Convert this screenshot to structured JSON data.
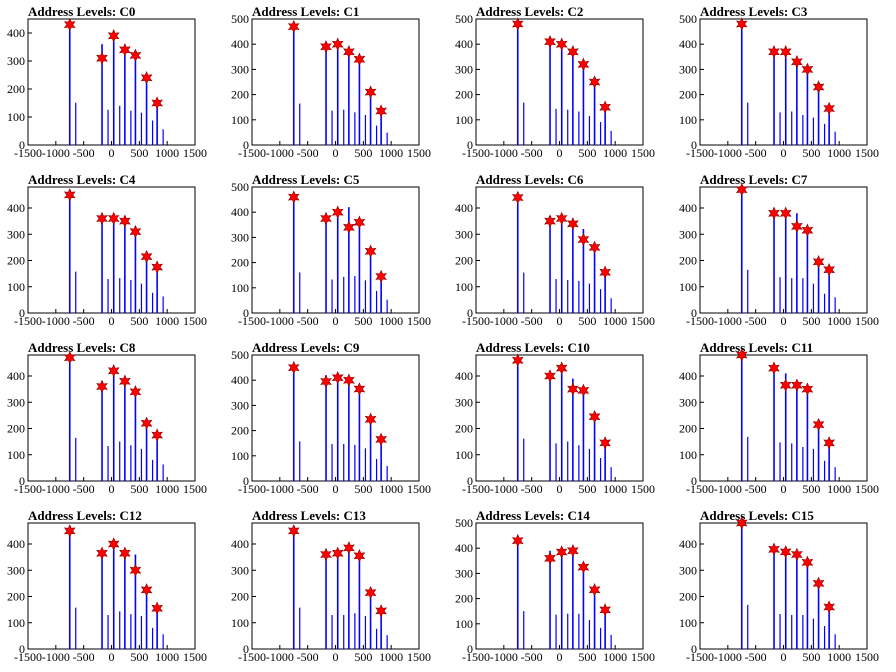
{
  "figure": {
    "rows": 4,
    "cols": 4
  },
  "chart_data": [
    {
      "title": "Address Levels: C0",
      "type": "bar",
      "xlim": [
        -1500,
        1500
      ],
      "ylim": [
        0,
        450
      ],
      "xticks": [
        "-1500",
        "-1000",
        "-500",
        "0",
        "500",
        "1000",
        "1500"
      ],
      "yticks": [
        "0",
        "100",
        "200",
        "300",
        "400"
      ],
      "peaks_x": [
        -750,
        -170,
        40,
        240,
        430,
        630,
        820
      ],
      "bar_heights": [
        430,
        360,
        400,
        350,
        330,
        250,
        160
      ],
      "marker_heights": [
        430,
        310,
        390,
        340,
        320,
        240,
        150
      ]
    },
    {
      "title": "Address Levels: C1",
      "type": "bar",
      "xlim": [
        -1500,
        1500
      ],
      "ylim": [
        0,
        500
      ],
      "xticks": [
        "-1500",
        "-1000",
        "-500",
        "0",
        "500",
        "1000",
        "1500"
      ],
      "yticks": [
        "0",
        "100",
        "200",
        "300",
        "400",
        "500"
      ],
      "peaks_x": [
        -750,
        -170,
        40,
        240,
        430,
        630,
        820
      ],
      "bar_heights": [
        470,
        390,
        400,
        370,
        340,
        220,
        140
      ],
      "marker_heights": [
        470,
        390,
        400,
        370,
        340,
        210,
        135
      ]
    },
    {
      "title": "Address Levels: C2",
      "type": "bar",
      "xlim": [
        -1500,
        1500
      ],
      "ylim": [
        0,
        500
      ],
      "xticks": [
        "-1500",
        "-1000",
        "-500",
        "0",
        "500",
        "1000",
        "1500"
      ],
      "yticks": [
        "0",
        "100",
        "200",
        "300",
        "400",
        "500"
      ],
      "peaks_x": [
        -750,
        -170,
        40,
        240,
        430,
        630,
        820
      ],
      "bar_heights": [
        480,
        410,
        400,
        380,
        330,
        260,
        160
      ],
      "marker_heights": [
        480,
        410,
        400,
        370,
        320,
        250,
        150
      ]
    },
    {
      "title": "Address Levels: C3",
      "type": "bar",
      "xlim": [
        -1500,
        1500
      ],
      "ylim": [
        0,
        500
      ],
      "xticks": [
        "-1500",
        "-1000",
        "-500",
        "0",
        "500",
        "1000",
        "1500"
      ],
      "yticks": [
        "0",
        "100",
        "200",
        "300",
        "400",
        "500"
      ],
      "peaks_x": [
        -750,
        -170,
        40,
        240,
        430,
        630,
        820
      ],
      "bar_heights": [
        480,
        370,
        380,
        340,
        310,
        240,
        150
      ],
      "marker_heights": [
        480,
        370,
        370,
        330,
        300,
        230,
        145
      ]
    },
    {
      "title": "Address Levels: C4",
      "type": "bar",
      "xlim": [
        -1500,
        1500
      ],
      "ylim": [
        0,
        480
      ],
      "xticks": [
        "-1500",
        "-1000",
        "-500",
        "0",
        "500",
        "1000",
        "1500"
      ],
      "yticks": [
        "0",
        "100",
        "200",
        "300",
        "400"
      ],
      "peaks_x": [
        -750,
        -170,
        40,
        240,
        430,
        630,
        820
      ],
      "bar_heights": [
        450,
        370,
        380,
        360,
        320,
        220,
        180
      ],
      "marker_heights": [
        450,
        360,
        360,
        350,
        310,
        215,
        175
      ]
    },
    {
      "title": "Address Levels: C5",
      "type": "bar",
      "xlim": [
        -1500,
        1500
      ],
      "ylim": [
        0,
        500
      ],
      "xticks": [
        "-1500",
        "-1000",
        "-500",
        "0",
        "500",
        "1000",
        "1500"
      ],
      "yticks": [
        "0",
        "100",
        "200",
        "300",
        "400",
        "500"
      ],
      "peaks_x": [
        -750,
        -170,
        40,
        240,
        430,
        630,
        820
      ],
      "bar_heights": [
        460,
        380,
        410,
        420,
        370,
        250,
        150
      ],
      "marker_heights": [
        460,
        375,
        400,
        340,
        360,
        245,
        145
      ]
    },
    {
      "title": "Address Levels: C6",
      "type": "bar",
      "xlim": [
        -1500,
        1500
      ],
      "ylim": [
        0,
        480
      ],
      "xticks": [
        "-1500",
        "-1000",
        "-500",
        "0",
        "500",
        "1000",
        "1500"
      ],
      "yticks": [
        "0",
        "100",
        "200",
        "300",
        "400"
      ],
      "peaks_x": [
        -750,
        -170,
        40,
        240,
        430,
        630,
        820
      ],
      "bar_heights": [
        440,
        370,
        360,
        350,
        320,
        260,
        160
      ],
      "marker_heights": [
        440,
        350,
        360,
        340,
        280,
        250,
        155
      ]
    },
    {
      "title": "Address Levels: C7",
      "type": "bar",
      "xlim": [
        -1500,
        1500
      ],
      "ylim": [
        0,
        480
      ],
      "xticks": [
        "-1500",
        "-1000",
        "-500",
        "0",
        "500",
        "1000",
        "1500"
      ],
      "yticks": [
        "0",
        "100",
        "200",
        "300",
        "400"
      ],
      "peaks_x": [
        -750,
        -170,
        40,
        240,
        430,
        630,
        820
      ],
      "bar_heights": [
        470,
        390,
        380,
        380,
        320,
        210,
        170
      ],
      "marker_heights": [
        470,
        380,
        380,
        330,
        315,
        195,
        165
      ]
    },
    {
      "title": "Address Levels: C8",
      "type": "bar",
      "xlim": [
        -1500,
        1500
      ],
      "ylim": [
        0,
        480
      ],
      "xticks": [
        "-1500",
        "-1000",
        "-500",
        "0",
        "500",
        "1000",
        "1500"
      ],
      "yticks": [
        "0",
        "100",
        "200",
        "300",
        "400"
      ],
      "peaks_x": [
        -750,
        -170,
        40,
        240,
        430,
        630,
        820
      ],
      "bar_heights": [
        470,
        380,
        430,
        390,
        350,
        230,
        180
      ],
      "marker_heights": [
        470,
        360,
        420,
        380,
        340,
        220,
        175
      ]
    },
    {
      "title": "Address Levels: C9",
      "type": "bar",
      "xlim": [
        -1500,
        1500
      ],
      "ylim": [
        0,
        500
      ],
      "xticks": [
        "-1500",
        "-1000",
        "-500",
        "0",
        "500",
        "1000",
        "1500"
      ],
      "yticks": [
        "0",
        "100",
        "200",
        "300",
        "400",
        "500"
      ],
      "peaks_x": [
        -750,
        -170,
        40,
        240,
        430,
        630,
        820
      ],
      "bar_heights": [
        450,
        420,
        420,
        410,
        370,
        250,
        170
      ],
      "marker_heights": [
        450,
        395,
        410,
        400,
        365,
        245,
        165
      ]
    },
    {
      "title": "Address Levels: C10",
      "type": "bar",
      "xlim": [
        -1500,
        1500
      ],
      "ylim": [
        0,
        480
      ],
      "xticks": [
        "-1500",
        "-1000",
        "-500",
        "0",
        "500",
        "1000",
        "1500"
      ],
      "yticks": [
        "0",
        "100",
        "200",
        "300",
        "400"
      ],
      "peaks_x": [
        -750,
        -170,
        40,
        240,
        430,
        630,
        820
      ],
      "bar_heights": [
        460,
        410,
        430,
        390,
        350,
        250,
        150
      ],
      "marker_heights": [
        460,
        400,
        430,
        350,
        345,
        245,
        145
      ]
    },
    {
      "title": "Address Levels: C11",
      "type": "bar",
      "xlim": [
        -1500,
        1500
      ],
      "ylim": [
        0,
        480
      ],
      "xticks": [
        "-1500",
        "-1000",
        "-500",
        "0",
        "500",
        "1000",
        "1500"
      ],
      "yticks": [
        "0",
        "100",
        "200",
        "300",
        "400"
      ],
      "peaks_x": [
        -750,
        -170,
        40,
        240,
        430,
        630,
        820
      ],
      "bar_heights": [
        480,
        420,
        410,
        370,
        350,
        220,
        150
      ],
      "marker_heights": [
        480,
        430,
        365,
        365,
        350,
        215,
        145
      ]
    },
    {
      "title": "Address Levels: C12",
      "type": "bar",
      "xlim": [
        -1500,
        1500
      ],
      "ylim": [
        0,
        480
      ],
      "xticks": [
        "-1500",
        "-1000",
        "-500",
        "0",
        "500",
        "1000",
        "1500"
      ],
      "yticks": [
        "0",
        "100",
        "200",
        "300",
        "400"
      ],
      "peaks_x": [
        -750,
        -170,
        40,
        240,
        430,
        630,
        820
      ],
      "bar_heights": [
        450,
        370,
        410,
        380,
        360,
        230,
        160
      ],
      "marker_heights": [
        450,
        365,
        400,
        365,
        300,
        225,
        155
      ]
    },
    {
      "title": "Address Levels: C13",
      "type": "bar",
      "xlim": [
        -1500,
        1500
      ],
      "ylim": [
        0,
        480
      ],
      "xticks": [
        "-1500",
        "-1000",
        "-500",
        "0",
        "500",
        "1000",
        "1500"
      ],
      "yticks": [
        "0",
        "100",
        "200",
        "300",
        "400"
      ],
      "peaks_x": [
        -750,
        -170,
        40,
        240,
        430,
        630,
        820
      ],
      "bar_heights": [
        450,
        370,
        370,
        390,
        360,
        220,
        150
      ],
      "marker_heights": [
        450,
        360,
        365,
        385,
        355,
        215,
        145
      ]
    },
    {
      "title": "Address Levels: C14",
      "type": "bar",
      "xlim": [
        -1500,
        1500
      ],
      "ylim": [
        0,
        500
      ],
      "xticks": [
        "-1500",
        "-1000",
        "-500",
        "0",
        "500",
        "1000",
        "1500"
      ],
      "yticks": [
        "0",
        "100",
        "200",
        "300",
        "400",
        "500"
      ],
      "peaks_x": [
        -750,
        -170,
        40,
        240,
        430,
        630,
        820
      ],
      "bar_heights": [
        430,
        390,
        400,
        400,
        330,
        240,
        160
      ],
      "marker_heights": [
        430,
        360,
        385,
        390,
        325,
        235,
        155
      ]
    },
    {
      "title": "Address Levels: C15",
      "type": "bar",
      "xlim": [
        -1500,
        1500
      ],
      "ylim": [
        0,
        480
      ],
      "xticks": [
        "-1500",
        "-1000",
        "-500",
        "0",
        "500",
        "1000",
        "1500"
      ],
      "yticks": [
        "0",
        "100",
        "200",
        "300",
        "400"
      ],
      "peaks_x": [
        -750,
        -170,
        40,
        240,
        430,
        630,
        820
      ],
      "bar_heights": [
        480,
        380,
        370,
        370,
        330,
        250,
        160
      ],
      "marker_heights": [
        480,
        380,
        370,
        360,
        330,
        250,
        160
      ]
    }
  ],
  "colors": {
    "bar": "#0000ff",
    "marker": "#ff0000",
    "marker_edge": "#8b0000",
    "axis": "#000000",
    "background": "#ffffff"
  }
}
